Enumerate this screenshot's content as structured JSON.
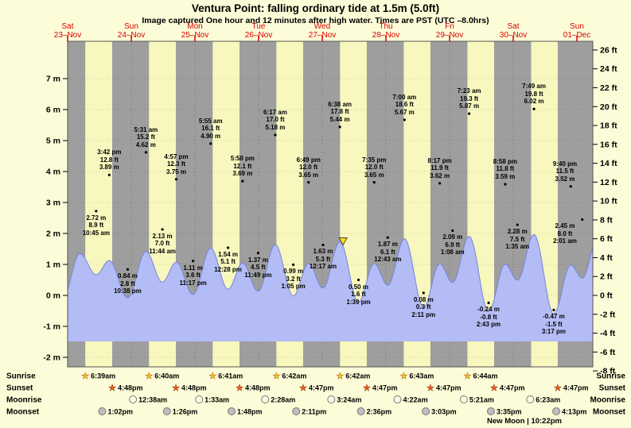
{
  "header": {
    "title": "Ventura Point: falling  ordinary tide at 1.5m (5.0ft)",
    "subtitle": "Image captured One hour and 12 minutes after high water. Times are PST (UTC –8.0hrs)"
  },
  "chart_data": {
    "type": "area",
    "title": "Ventura Point: falling ordinary tide at 1.5m (5.0ft)",
    "x_days": [
      {
        "dow": "Sat",
        "date": "23–Nov"
      },
      {
        "dow": "Sun",
        "date": "24–Nov"
      },
      {
        "dow": "Mon",
        "date": "25–Nov"
      },
      {
        "dow": "Tue",
        "date": "26–Nov"
      },
      {
        "dow": "Wed",
        "date": "27–Nov"
      },
      {
        "dow": "Thu",
        "date": "28–Nov"
      },
      {
        "dow": "Fri",
        "date": "29–Nov"
      },
      {
        "dow": "Sat",
        "date": "30–Nov"
      },
      {
        "dow": "Sun",
        "date": "01–Dec"
      }
    ],
    "y_left": {
      "unit": "m",
      "ticks": [
        7,
        6,
        5,
        4,
        3,
        2,
        1,
        0,
        -1,
        -2
      ]
    },
    "y_right": {
      "unit": "ft",
      "ticks": [
        26,
        24,
        22,
        20,
        18,
        16,
        14,
        12,
        10,
        8,
        6,
        4,
        2,
        0,
        -2,
        -4,
        -6,
        -8
      ]
    },
    "tide_extremes": [
      {
        "kind": "low",
        "t": 10.75,
        "time": "10:45 am",
        "m": 2.72,
        "ft": 8.9
      },
      {
        "kind": "high",
        "t": 15.7,
        "time": "3:42 pm",
        "m": 3.89,
        "ft": 12.8
      },
      {
        "kind": "low",
        "t": 22.633,
        "time": "10:38 pm",
        "m": 0.84,
        "ft": 2.8
      },
      {
        "kind": "high",
        "t": 29.517,
        "time": "5:31 am",
        "m": 4.62,
        "ft": 15.2
      },
      {
        "kind": "low",
        "t": 35.733,
        "time": "11:44 am",
        "m": 2.13,
        "ft": 7.0
      },
      {
        "kind": "high",
        "t": 40.95,
        "time": "4:57 pm",
        "m": 3.75,
        "ft": 12.3
      },
      {
        "kind": "low",
        "t": 47.283,
        "time": "11:17 pm",
        "m": 1.11,
        "ft": 3.6
      },
      {
        "kind": "high",
        "t": 53.917,
        "time": "5:55 am",
        "m": 4.9,
        "ft": 16.1
      },
      {
        "kind": "low",
        "t": 60.467,
        "time": "12:28 pm",
        "m": 1.54,
        "ft": 5.1
      },
      {
        "kind": "high",
        "t": 65.967,
        "time": "5:58 pm",
        "m": 3.69,
        "ft": 12.1
      },
      {
        "kind": "low",
        "t": 71.817,
        "time": "11:49 pm",
        "m": 1.37,
        "ft": 4.5
      },
      {
        "kind": "high",
        "t": 78.283,
        "time": "6:17 am",
        "m": 5.18,
        "ft": 17.0
      },
      {
        "kind": "low",
        "t": 85.083,
        "time": "1:05 pm",
        "m": 0.99,
        "ft": 3.2
      },
      {
        "kind": "high",
        "t": 90.817,
        "time": "6:49 pm",
        "m": 3.65,
        "ft": 12.0
      },
      {
        "kind": "low",
        "t": 96.283,
        "time": "12:17 am",
        "m": 1.63,
        "ft": 5.3
      },
      {
        "kind": "high",
        "t": 102.633,
        "time": "6:38 am",
        "m": 5.44,
        "ft": 17.8
      },
      {
        "kind": "low",
        "t": 109.65,
        "time": "1:39 pm",
        "m": 0.5,
        "ft": 1.6
      },
      {
        "kind": "high",
        "t": 115.583,
        "time": "7:35 pm",
        "m": 3.65,
        "ft": 12.0
      },
      {
        "kind": "low",
        "t": 120.717,
        "time": "12:43 am",
        "m": 1.87,
        "ft": 6.1
      },
      {
        "kind": "high",
        "t": 127.0,
        "time": "7:00 am",
        "m": 5.67,
        "ft": 18.6
      },
      {
        "kind": "low",
        "t": 134.183,
        "time": "2:11 pm",
        "m": 0.08,
        "ft": 0.3
      },
      {
        "kind": "high",
        "t": 140.283,
        "time": "8:17 pm",
        "m": 3.62,
        "ft": 11.9
      },
      {
        "kind": "low",
        "t": 145.133,
        "time": "1:08 am",
        "m": 2.09,
        "ft": 6.9
      },
      {
        "kind": "high",
        "t": 151.383,
        "time": "7:23 am",
        "m": 5.87,
        "ft": 19.3
      },
      {
        "kind": "low",
        "t": 158.717,
        "time": "2:43 pm",
        "m": -0.24,
        "ft": -0.8
      },
      {
        "kind": "high",
        "t": 164.967,
        "time": "8:58 pm",
        "m": 3.59,
        "ft": 11.8
      },
      {
        "kind": "low",
        "t": 169.583,
        "time": "1:35 am",
        "m": 2.28,
        "ft": 7.5
      },
      {
        "kind": "high",
        "t": 175.817,
        "time": "7:49 am",
        "m": 6.02,
        "ft": 19.8
      },
      {
        "kind": "low",
        "t": 183.283,
        "time": "3:17 pm",
        "m": -0.47,
        "ft": -1.5
      },
      {
        "kind": "high",
        "t": 189.667,
        "time": "9:40 pm",
        "m": 3.52,
        "ft": 11.5
      },
      {
        "kind": "low",
        "t": 194.017,
        "time": "2:01 am",
        "m": 2.45,
        "ft": 8.0
      }
    ],
    "boundary_extremes": [
      {
        "t": -2.1,
        "m": 0.6
      },
      {
        "t": 4.67,
        "m": 4.45
      },
      {
        "t": 200.3,
        "m": 6.1
      }
    ],
    "current_marker": {
      "t": 103.83,
      "level_m": 1.5,
      "level_ft": 5.0
    },
    "night_bands": [
      [
        0,
        6.65
      ],
      [
        16.8,
        30.667
      ],
      [
        40.8,
        54.683
      ],
      [
        64.8,
        78.7
      ],
      [
        88.783,
        102.7
      ],
      [
        112.783,
        126.717
      ],
      [
        136.783,
        150.733
      ],
      [
        160.783,
        174.75
      ],
      [
        184.783,
        198
      ]
    ],
    "hours_span": 198
  },
  "astro": {
    "rows": [
      {
        "label": "Sunrise",
        "icon": "sunrise-star",
        "events": [
          {
            "t": 6.65,
            "time": "6:39am"
          },
          {
            "t": 30.667,
            "time": "6:40am"
          },
          {
            "t": 54.683,
            "time": "6:41am"
          },
          {
            "t": 78.7,
            "time": "6:42am"
          },
          {
            "t": 102.7,
            "time": "6:42am"
          },
          {
            "t": 126.717,
            "time": "6:43am"
          },
          {
            "t": 150.733,
            "time": "6:44am"
          }
        ]
      },
      {
        "label": "Sunset",
        "icon": "sunset-star",
        "events": [
          {
            "t": 16.8,
            "time": "4:48pm"
          },
          {
            "t": 40.8,
            "time": "4:48pm"
          },
          {
            "t": 64.8,
            "time": "4:48pm"
          },
          {
            "t": 88.783,
            "time": "4:47pm"
          },
          {
            "t": 112.783,
            "time": "4:47pm"
          },
          {
            "t": 136.783,
            "time": "4:47pm"
          },
          {
            "t": 160.783,
            "time": "4:47pm"
          },
          {
            "t": 184.783,
            "time": "4:47pm"
          }
        ]
      },
      {
        "label": "Moonrise",
        "icon": "moonrise-circle",
        "events": [
          {
            "t": 24.633,
            "time": "12:38am"
          },
          {
            "t": 49.55,
            "time": "1:33am"
          },
          {
            "t": 74.467,
            "time": "2:28am"
          },
          {
            "t": 99.4,
            "time": "3:24am"
          },
          {
            "t": 124.367,
            "time": "4:22am"
          },
          {
            "t": 149.35,
            "time": "5:21am"
          },
          {
            "t": 174.383,
            "time": "6:23am"
          }
        ]
      },
      {
        "label": "Moonset",
        "icon": "moonset-circle",
        "events": [
          {
            "t": 13.033,
            "time": "1:02pm"
          },
          {
            "t": 37.433,
            "time": "1:26pm"
          },
          {
            "t": 61.8,
            "time": "1:48pm"
          },
          {
            "t": 86.183,
            "time": "2:11pm"
          },
          {
            "t": 110.6,
            "time": "2:36pm"
          },
          {
            "t": 135.05,
            "time": "3:03pm"
          },
          {
            "t": 159.583,
            "time": "3:35pm"
          },
          {
            "t": 184.217,
            "time": "4:13pm"
          }
        ]
      }
    ],
    "new_moon": {
      "label": "New Moon",
      "separator": "|",
      "time": "10:22pm"
    }
  },
  "colors": {
    "background": "#FCFCD8",
    "plot_day": "#F7F7BE",
    "night": "#9E9E9E",
    "tide_fill": "#B3BCF5",
    "tide_stroke": "#7484DE",
    "red": "#D80000",
    "sunrise_star": "#F7C52B",
    "sunset_star": "#EE6A15",
    "moonrise_circle": "#FFFDE6",
    "moonset_circle": "#BFBFBF",
    "marker": "#FFE013"
  }
}
